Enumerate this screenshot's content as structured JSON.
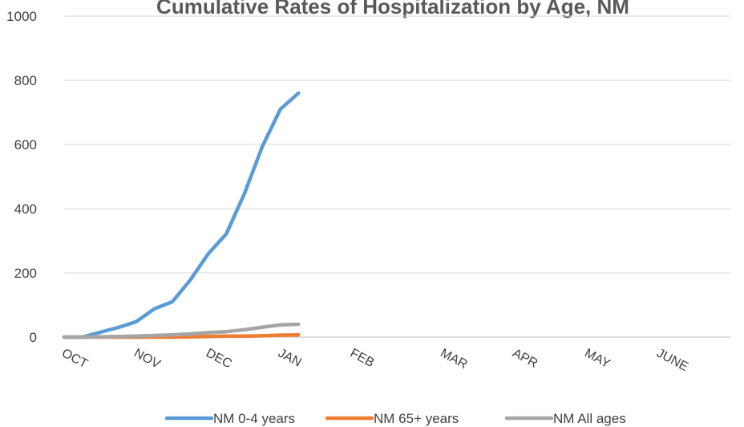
{
  "chart_data": {
    "type": "line",
    "title": "Cumulative Rates of Hospitalization by Age, NM",
    "xlabel": "",
    "ylabel": "",
    "ylim": [
      0,
      1000
    ],
    "yticks": [
      0,
      200,
      400,
      600,
      800,
      1000
    ],
    "grid": true,
    "legend_position": "bottom",
    "month_labels": [
      "OCT",
      "NOV",
      "DEC",
      "JAN",
      "FEB",
      "MAR",
      "APR",
      "MAY",
      "JUNE"
    ],
    "weeks_per_month": [
      4,
      4,
      4,
      4,
      5,
      4,
      4,
      4,
      4
    ],
    "series": [
      {
        "name": "NM 0-4 years",
        "color": "#5b9bd5",
        "values": [
          0,
          0,
          15,
          30,
          48,
          88,
          110,
          178,
          260,
          322,
          447,
          595,
          710,
          760
        ]
      },
      {
        "name": "NM 65+ years",
        "color": "#ed7d31",
        "values": [
          0,
          0,
          0,
          0,
          0,
          0,
          0,
          1,
          2,
          3,
          3,
          4,
          6,
          7
        ]
      },
      {
        "name": "NM All ages",
        "color": "#a5a5a5",
        "values": [
          0,
          0,
          1,
          2,
          3,
          5,
          7,
          10,
          14,
          17,
          23,
          31,
          38,
          40
        ]
      }
    ]
  }
}
